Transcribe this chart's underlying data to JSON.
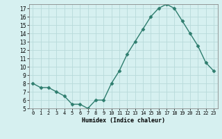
{
  "x": [
    0,
    1,
    2,
    3,
    4,
    5,
    6,
    7,
    8,
    9,
    10,
    11,
    12,
    13,
    14,
    15,
    16,
    17,
    18,
    19,
    20,
    21,
    22,
    23
  ],
  "y": [
    8,
    7.5,
    7.5,
    7,
    6.5,
    5.5,
    5.5,
    5,
    6,
    6,
    8,
    9.5,
    11.5,
    13,
    14.5,
    16,
    17,
    17.5,
    17,
    15.5,
    14,
    12.5,
    10.5,
    9.5
  ],
  "xlabel": "Humidex (Indice chaleur)",
  "ylim": [
    5,
    17.5
  ],
  "xlim": [
    -0.5,
    23.5
  ],
  "line_color": "#2e7d6e",
  "marker": "D",
  "marker_size": 2.5,
  "bg_color": "#d6f0f0",
  "grid_color": "#b8dada",
  "yticks": [
    5,
    6,
    7,
    8,
    9,
    10,
    11,
    12,
    13,
    14,
    15,
    16,
    17
  ],
  "xtick_labels": [
    "0",
    "1",
    "2",
    "3",
    "4",
    "5",
    "6",
    "7",
    "8",
    "9",
    "10",
    "11",
    "12",
    "13",
    "14",
    "15",
    "16",
    "17",
    "18",
    "19",
    "20",
    "21",
    "22",
    "23"
  ],
  "xlabel_fontsize": 6,
  "ytick_fontsize": 5.5,
  "xtick_fontsize": 5
}
